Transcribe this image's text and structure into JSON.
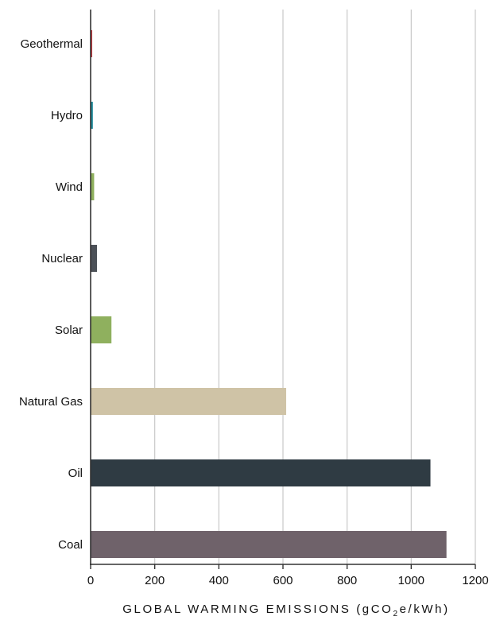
{
  "chart_data": {
    "type": "bar",
    "orientation": "horizontal",
    "categories": [
      "Geothermal",
      "Hydro",
      "Wind",
      "Nuclear",
      "Solar",
      "Natural Gas",
      "Oil",
      "Coal"
    ],
    "values": [
      5,
      7,
      11,
      20,
      65,
      610,
      1060,
      1110
    ],
    "colors": [
      "#c0393f",
      "#1f8a9a",
      "#8fb05e",
      "#4c5158",
      "#8fb05e",
      "#cfc3a6",
      "#2f3b43",
      "#6f626a"
    ],
    "xlabel": {
      "prefix": "GLOBAL WARMING EMISSIONS (gCO",
      "subscript": "2",
      "suffix": "e/kWh)"
    },
    "xlim": [
      0,
      1200
    ],
    "xticks": [
      0,
      200,
      400,
      600,
      800,
      1000,
      1200
    ],
    "gridlines": true,
    "gridline_color": "#c9c9c9",
    "axis_color": "#333333"
  }
}
